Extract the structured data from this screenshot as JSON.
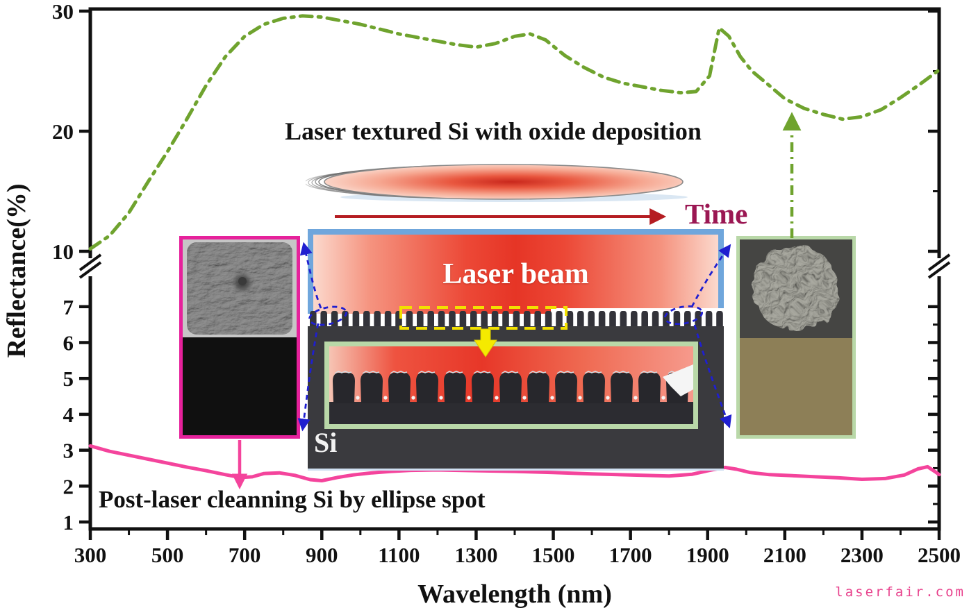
{
  "annotations": {
    "green_label": "Laser textured Si with oxide deposition",
    "pink_label": "Post-laser cleanning Si by ellipse spot",
    "time_label": "Time",
    "laser_beam_label": "Laser beam",
    "si_label": "Si",
    "watermark": "laserfair.com"
  },
  "colors": {
    "green_curve": "#6fa32e",
    "pink_curve": "#f4449c",
    "beam_border": "#6fa6dc",
    "si_gray": "#3a3a3e",
    "magenta_border": "#e6219b",
    "green_border": "#b9d8a8",
    "yellow": "#f2e000",
    "blue_dash": "#1f1fd0",
    "red_arrow": "#b51d22",
    "time_text": "#9b1753",
    "watermark": "#e8418c",
    "olive": "#8d7f57"
  },
  "chart_data": {
    "type": "line",
    "xlabel": "Wavelength (nm)",
    "ylabel": "Reflectance(%)",
    "x_range": [
      300,
      2500
    ],
    "x_ticks": [
      300,
      500,
      700,
      900,
      1100,
      1300,
      1500,
      1700,
      1900,
      2100,
      2300,
      2500
    ],
    "x_minor_ticks": [
      400,
      600,
      800,
      1000,
      1200,
      1400,
      1600,
      1800,
      2000,
      2200,
      2400
    ],
    "y_axis": {
      "broken": true,
      "upper_ticks": [
        10,
        20,
        30
      ],
      "lower_ticks": [
        1,
        2,
        3,
        4,
        5,
        6,
        7
      ],
      "right_minor_ticks": [
        1.5,
        2.5,
        3.5,
        4.5,
        5.5,
        6.5,
        15,
        25
      ],
      "upper_range": [
        10,
        30
      ],
      "lower_range": [
        1,
        7
      ]
    },
    "series": [
      {
        "name": "Laser textured Si with oxide deposition",
        "style": "dash-dot",
        "color": "#6fa32e",
        "points": [
          [
            300,
            10.2
          ],
          [
            350,
            11.3
          ],
          [
            400,
            13.2
          ],
          [
            450,
            15.8
          ],
          [
            500,
            18.3
          ],
          [
            550,
            21.0
          ],
          [
            600,
            23.8
          ],
          [
            650,
            26.2
          ],
          [
            700,
            27.9
          ],
          [
            750,
            28.9
          ],
          [
            800,
            29.4
          ],
          [
            850,
            29.6
          ],
          [
            900,
            29.5
          ],
          [
            950,
            29.2
          ],
          [
            1000,
            28.9
          ],
          [
            1050,
            28.5
          ],
          [
            1100,
            28.1
          ],
          [
            1150,
            27.8
          ],
          [
            1200,
            27.5
          ],
          [
            1250,
            27.2
          ],
          [
            1300,
            27.0
          ],
          [
            1350,
            27.3
          ],
          [
            1400,
            27.9
          ],
          [
            1440,
            28.1
          ],
          [
            1480,
            27.6
          ],
          [
            1530,
            26.3
          ],
          [
            1580,
            25.3
          ],
          [
            1630,
            24.5
          ],
          [
            1680,
            24.0
          ],
          [
            1730,
            23.7
          ],
          [
            1780,
            23.4
          ],
          [
            1830,
            23.2
          ],
          [
            1870,
            23.3
          ],
          [
            1905,
            24.6
          ],
          [
            1930,
            28.6
          ],
          [
            1955,
            27.9
          ],
          [
            1985,
            26.2
          ],
          [
            2015,
            25.0
          ],
          [
            2060,
            23.8
          ],
          [
            2100,
            22.7
          ],
          [
            2150,
            21.9
          ],
          [
            2200,
            21.4
          ],
          [
            2250,
            21.0
          ],
          [
            2300,
            21.2
          ],
          [
            2350,
            21.8
          ],
          [
            2400,
            22.8
          ],
          [
            2450,
            23.9
          ],
          [
            2500,
            25.1
          ]
        ]
      },
      {
        "name": "Post-laser cleanning Si by ellipse spot",
        "style": "solid",
        "color": "#f4449c",
        "points": [
          [
            300,
            3.12
          ],
          [
            350,
            2.97
          ],
          [
            400,
            2.86
          ],
          [
            450,
            2.75
          ],
          [
            500,
            2.64
          ],
          [
            550,
            2.53
          ],
          [
            600,
            2.43
          ],
          [
            650,
            2.32
          ],
          [
            690,
            2.24
          ],
          [
            720,
            2.26
          ],
          [
            750,
            2.35
          ],
          [
            790,
            2.37
          ],
          [
            830,
            2.3
          ],
          [
            870,
            2.18
          ],
          [
            900,
            2.15
          ],
          [
            940,
            2.24
          ],
          [
            980,
            2.31
          ],
          [
            1030,
            2.37
          ],
          [
            1080,
            2.41
          ],
          [
            1130,
            2.44
          ],
          [
            1200,
            2.45
          ],
          [
            1300,
            2.43
          ],
          [
            1400,
            2.41
          ],
          [
            1500,
            2.38
          ],
          [
            1600,
            2.34
          ],
          [
            1700,
            2.31
          ],
          [
            1800,
            2.28
          ],
          [
            1860,
            2.33
          ],
          [
            1910,
            2.45
          ],
          [
            1945,
            2.52
          ],
          [
            1975,
            2.47
          ],
          [
            2010,
            2.38
          ],
          [
            2060,
            2.32
          ],
          [
            2120,
            2.29
          ],
          [
            2180,
            2.26
          ],
          [
            2240,
            2.23
          ],
          [
            2300,
            2.19
          ],
          [
            2360,
            2.21
          ],
          [
            2410,
            2.31
          ],
          [
            2445,
            2.48
          ],
          [
            2470,
            2.54
          ],
          [
            2490,
            2.4
          ],
          [
            2500,
            2.32
          ]
        ]
      }
    ]
  }
}
